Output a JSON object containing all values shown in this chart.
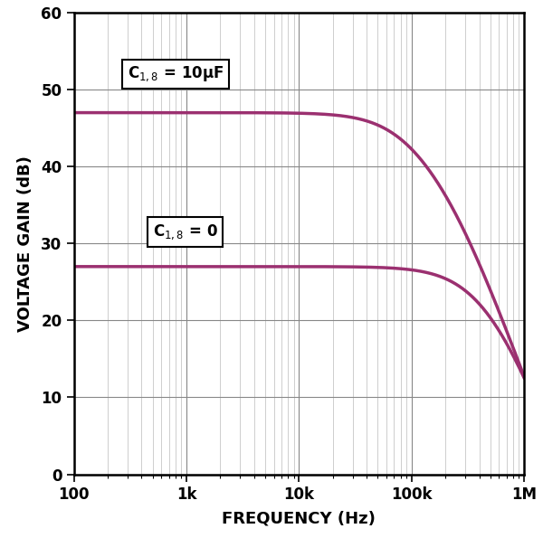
{
  "title": "",
  "xlabel": "FREQUENCY (Hz)",
  "ylabel": "VOLTAGE GAIN (dB)",
  "xlim": [
    100,
    1000000
  ],
  "ylim": [
    0,
    60
  ],
  "yticks": [
    0,
    10,
    20,
    30,
    40,
    50,
    60
  ],
  "xtick_labels": [
    "100",
    "1k",
    "10k",
    "100k",
    "1M"
  ],
  "xtick_positions": [
    100,
    1000,
    10000,
    100000,
    1000000
  ],
  "line_color": "#9B3070",
  "line_width": 2.5,
  "curve1_label": "C$_{1,8}$ = 10μF",
  "curve2_label": "C$_{1,8}$ = 0",
  "curve1_flat": 47.0,
  "curve2_flat": 27.0,
  "curve1_pole1": 80000,
  "curve1_pole2": 250000,
  "curve2_pole1": 350000,
  "curve2_pole2": 700000,
  "background_color": "#ffffff",
  "grid_major_color": "#888888",
  "grid_minor_color": "#bbbbbb",
  "annotation_box_color": "#ffffff",
  "annotation_box_edge": "#000000",
  "xlabel_fontsize": 13,
  "ylabel_fontsize": 13,
  "tick_labelsize": 12,
  "annot_fontsize": 12
}
